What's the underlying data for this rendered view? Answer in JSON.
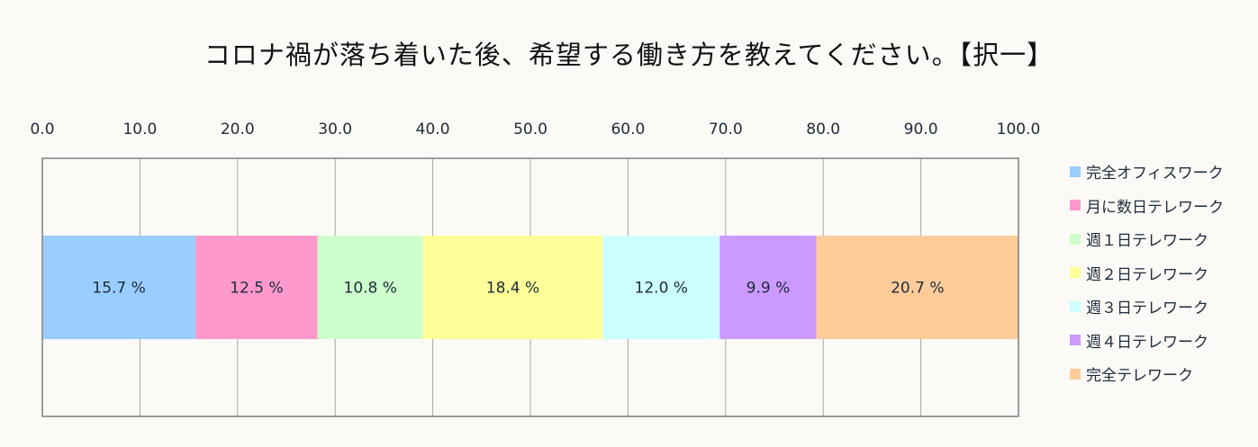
{
  "title": "コロナ禍が落ち着いた後、希望する働き方を教えてください。【択一】",
  "chart_data": {
    "type": "bar",
    "orientation": "horizontal",
    "stacked": true,
    "xlim": [
      0,
      100
    ],
    "x_ticks": [
      "0.0",
      "10.0",
      "20.0",
      "30.0",
      "40.0",
      "50.0",
      "60.0",
      "70.0",
      "80.0",
      "90.0",
      "100.0"
    ],
    "grid": true,
    "legend_position": "right",
    "series": [
      {
        "name": "完全オフィスワーク",
        "value": 15.7,
        "label": "15.7 %",
        "color": "#99ccff"
      },
      {
        "name": "月に数日テレワーク",
        "value": 12.5,
        "label": "12.5 %",
        "color": "#ff99cc"
      },
      {
        "name": "週１日テレワーク",
        "value": 10.8,
        "label": "10.8 %",
        "color": "#ccffcc"
      },
      {
        "name": "週２日テレワーク",
        "value": 18.4,
        "label": "18.4 %",
        "color": "#ffff99"
      },
      {
        "name": "週３日テレワーク",
        "value": 12.0,
        "label": "12.0 %",
        "color": "#ccffff"
      },
      {
        "name": "週４日テレワーク",
        "value": 9.9,
        "label": "9.9 %",
        "color": "#cc99ff"
      },
      {
        "name": "完全テレワーク",
        "value": 20.7,
        "label": "20.7 %",
        "color": "#ffcc99"
      }
    ]
  }
}
